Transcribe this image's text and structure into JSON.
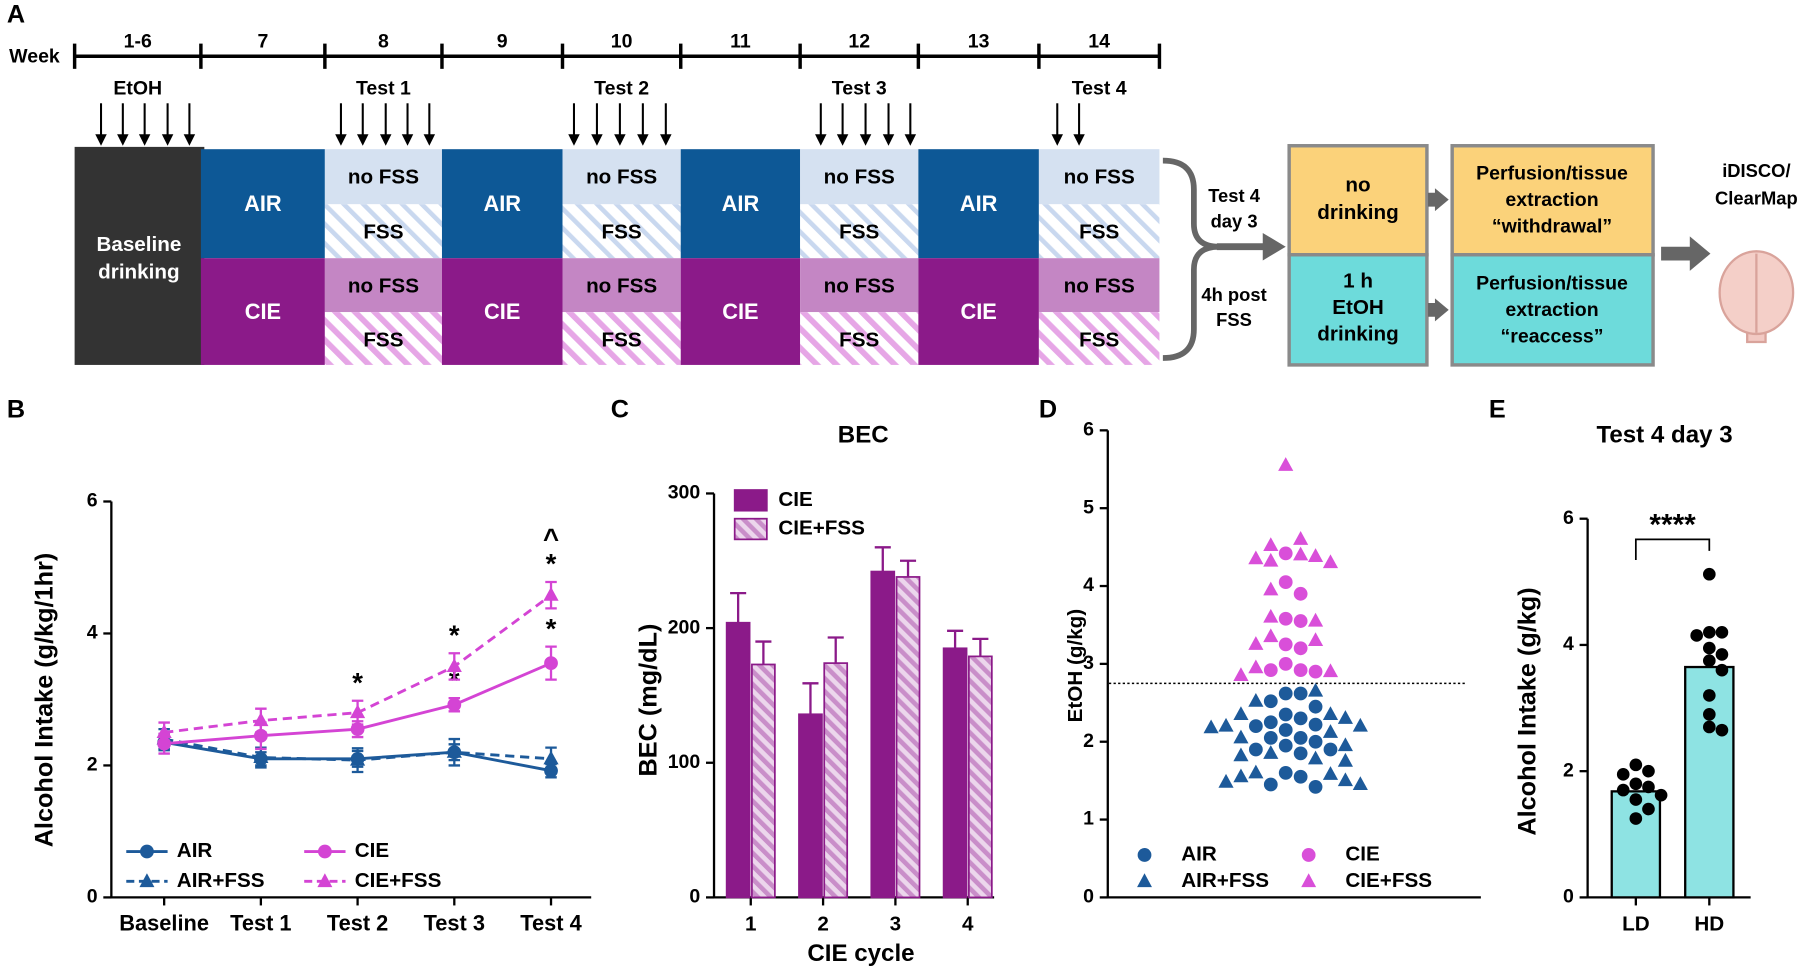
{
  "panel_a": {
    "label": "A",
    "week_label": "Week",
    "weeks": [
      "1-6",
      "7",
      "8",
      "9",
      "10",
      "11",
      "12",
      "13",
      "14"
    ],
    "phases": [
      "EtOH",
      "Test 1",
      "Test 2",
      "Test 3",
      "Test 4"
    ],
    "baseline": [
      "Baseline",
      "drinking"
    ],
    "air": "AIR",
    "cie": "CIE",
    "no_fss": "no FSS",
    "fss": "FSS",
    "branch_top": [
      "Test 4",
      "day 3"
    ],
    "branch_bottom": [
      "4h post",
      "FSS"
    ],
    "no_drinking": [
      "no",
      "drinking"
    ],
    "reaccess_drinking": [
      "1 h",
      "EtOH",
      "drinking"
    ],
    "withdrawal_box": [
      "Perfusion/tissue",
      "extraction",
      "“withdrawal”"
    ],
    "reaccess_box": [
      "Perfusion/tissue",
      "extraction",
      "“reaccess”"
    ],
    "imaging": [
      "iDISCO/",
      "ClearMap"
    ]
  },
  "chart_data": [
    {
      "panel_label": "B",
      "type": "line",
      "ylabel": "Alcohol Intake (g/kg/1hr)",
      "categories": [
        "Baseline",
        "Test 1",
        "Test 2",
        "Test 3",
        "Test 4"
      ],
      "ylim": [
        0,
        6
      ],
      "yticks": [
        0,
        2,
        4,
        6
      ],
      "series": [
        {
          "name": "AIR",
          "color": "#1d5a9a",
          "dashed": false,
          "marker": "circle",
          "values": [
            2.35,
            2.1,
            2.1,
            2.2,
            1.92
          ],
          "errors": [
            0.12,
            0.1,
            0.12,
            0.12,
            0.1
          ],
          "annotations": [
            null,
            null,
            null,
            null,
            null
          ]
        },
        {
          "name": "AIR+FSS",
          "color": "#1d5a9a",
          "dashed": true,
          "marker": "triangle",
          "values": [
            2.4,
            2.12,
            2.08,
            2.2,
            2.1
          ],
          "errors": [
            0.15,
            0.15,
            0.18,
            0.2,
            0.17
          ],
          "annotations": [
            null,
            null,
            null,
            null,
            null
          ]
        },
        {
          "name": "CIE",
          "color": "#d444d4",
          "dashed": false,
          "marker": "circle",
          "values": [
            2.33,
            2.45,
            2.55,
            2.92,
            3.55
          ],
          "errors": [
            0.15,
            0.2,
            0.12,
            0.1,
            0.25
          ],
          "annotations": [
            null,
            null,
            null,
            [
              "*"
            ],
            [
              "*"
            ]
          ]
        },
        {
          "name": "CIE+FSS",
          "color": "#d444d4",
          "dashed": true,
          "marker": "triangle",
          "values": [
            2.5,
            2.68,
            2.8,
            3.5,
            4.58
          ],
          "errors": [
            0.15,
            0.18,
            0.18,
            0.2,
            0.2
          ],
          "annotations": [
            null,
            null,
            [
              "*"
            ],
            [
              "*"
            ],
            [
              "*",
              "^"
            ]
          ]
        }
      ]
    },
    {
      "panel_label": "C",
      "type": "bar",
      "title": "BEC",
      "ylabel": "BEC (mg/dL)",
      "xlabel": "CIE cycle",
      "categories": [
        "1",
        "2",
        "3",
        "4"
      ],
      "ylim": [
        0,
        300
      ],
      "yticks": [
        0,
        100,
        200,
        300
      ],
      "series": [
        {
          "name": "CIE",
          "color": "#8b1a89",
          "hatch": false,
          "values": [
            204,
            136,
            242,
            185
          ],
          "errors": [
            22,
            23,
            18,
            13
          ]
        },
        {
          "name": "CIE+FSS",
          "color": "#c98ec9",
          "hatch": true,
          "values": [
            173,
            174,
            238,
            179
          ],
          "errors": [
            17,
            19,
            12,
            13
          ]
        }
      ]
    },
    {
      "panel_label": "D",
      "type": "swarm",
      "ylabel": "EtOH (g/kg)",
      "ylim": [
        0,
        6
      ],
      "yticks": [
        0,
        1,
        2,
        3,
        4,
        5,
        6
      ],
      "reference_line": 2.75,
      "reference_style": "dotted",
      "series": [
        {
          "name": "AIR",
          "color": "#1d5a9a",
          "marker": "circle",
          "values": [
            2.62,
            2.62,
            2.52,
            2.45,
            2.35,
            2.3,
            2.25,
            2.22,
            2.2,
            2.15,
            2.05,
            2.05,
            2.0,
            1.95,
            1.9,
            1.9,
            1.85,
            1.6,
            1.55,
            1.45,
            1.42
          ]
        },
        {
          "name": "AIR+FSS",
          "color": "#1d5a9a",
          "marker": "triangle",
          "values": [
            2.65,
            2.52,
            2.35,
            2.35,
            2.3,
            2.2,
            2.2,
            2.18,
            2.12,
            2.05,
            1.95,
            1.85,
            1.82,
            1.78,
            1.75,
            1.6,
            1.58,
            1.55,
            1.5,
            1.48,
            1.45
          ]
        },
        {
          "name": "CIE",
          "color": "#d94fd9",
          "marker": "circle",
          "values": [
            4.42,
            4.05,
            3.9,
            3.58,
            3.55,
            3.25,
            3.2,
            3.0,
            2.92,
            2.92,
            2.9
          ]
        },
        {
          "name": "CIE+FSS",
          "color": "#d94fd9",
          "marker": "triangle",
          "values": [
            5.55,
            4.6,
            4.52,
            4.4,
            4.38,
            4.35,
            4.32,
            4.3,
            3.95,
            3.6,
            3.55,
            3.35,
            3.3,
            3.25,
            2.95,
            2.9,
            2.85
          ]
        }
      ]
    },
    {
      "panel_label": "E",
      "type": "bar",
      "title": "Test 4 day 3",
      "ylabel": "Alcohol Intake (g/kg)",
      "categories": [
        "LD",
        "HD"
      ],
      "values": [
        1.68,
        3.65
      ],
      "color": "#8ee3e3",
      "points": [
        [
          2.1,
          2.0,
          1.95,
          1.8,
          1.75,
          1.7,
          1.62,
          1.55,
          1.4,
          1.25
        ],
        [
          5.12,
          4.2,
          4.2,
          4.15,
          3.95,
          3.85,
          3.75,
          3.6,
          3.2,
          2.9,
          2.7,
          2.65
        ]
      ],
      "significance": "****",
      "ylim": [
        0,
        6
      ],
      "yticks": [
        0,
        2,
        4,
        6
      ]
    }
  ]
}
